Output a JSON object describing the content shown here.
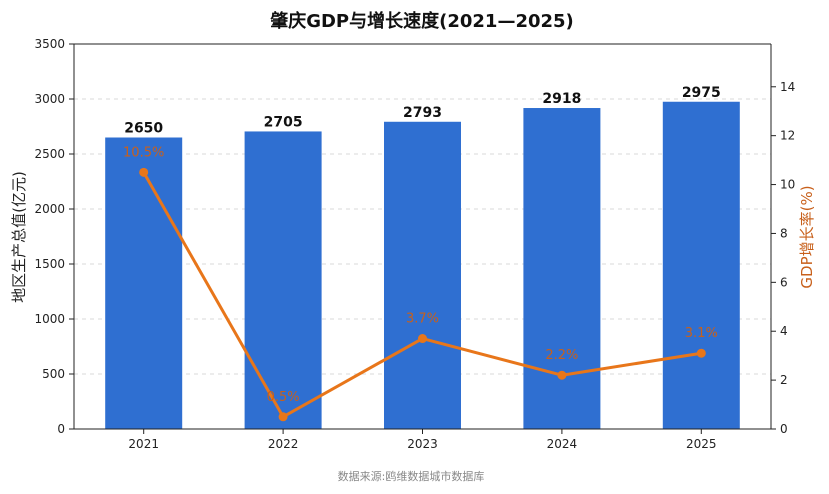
{
  "chart_data": {
    "type": "bar",
    "title": "肇庆GDP与增长速度(2021—2025)",
    "categories": [
      "2021",
      "2022",
      "2023",
      "2024",
      "2025"
    ],
    "series": [
      {
        "name": "",
        "kind": "bar",
        "axis": "left",
        "values": [
          2650,
          2705,
          2793,
          2918,
          2975
        ],
        "labels": [
          "2650",
          "2705",
          "2793",
          "2918",
          "2975"
        ]
      },
      {
        "name": "",
        "kind": "line",
        "axis": "right",
        "values": [
          10.5,
          0.5,
          3.7,
          2.2,
          3.1
        ],
        "labels": [
          "10.5%",
          "0.5%",
          "3.7%",
          "2.2%",
          "3.1%"
        ]
      }
    ],
    "ylabel": "地区生产总值(亿元)",
    "y2label": "GDP增长率(%)",
    "ylim": [
      0,
      3500
    ],
    "y2lim": [
      0,
      15.75
    ],
    "yticks": [
      0,
      500,
      1000,
      1500,
      2000,
      2500,
      3000,
      3500
    ],
    "y2ticks": [
      0,
      2,
      4,
      6,
      8,
      10,
      12,
      14
    ],
    "grid": true,
    "colors": {
      "bar": "#2f6fd1",
      "line": "#e8761a",
      "line_label": "#c8601b"
    },
    "source": "数据来源:鸥维数据城市数据库"
  }
}
